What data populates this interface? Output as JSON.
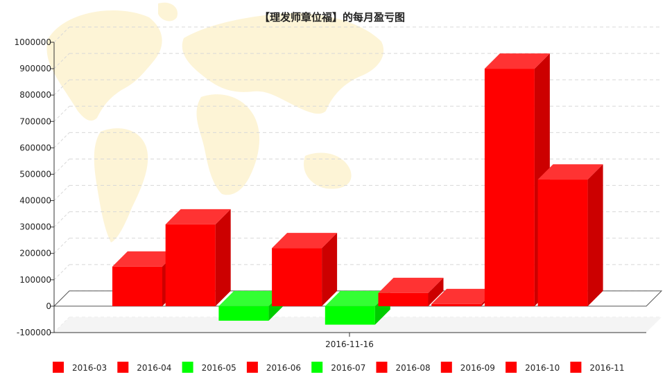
{
  "chart_data": {
    "type": "bar",
    "title": "【理发师章位福】的每月盈亏图",
    "xlabel": "",
    "ylabel": "",
    "categories": [
      "2016-11-16"
    ],
    "ylim": [
      -100000,
      1000000
    ],
    "yticks": [
      "1000000",
      "900000",
      "800000",
      "700000",
      "600000",
      "500000",
      "400000",
      "300000",
      "200000",
      "100000",
      "0",
      "-100000"
    ],
    "grid": true,
    "legend_position": "bottom",
    "series": [
      {
        "name": "2016-03",
        "values": [
          150000
        ],
        "color": "#ff0000"
      },
      {
        "name": "2016-04",
        "values": [
          310000
        ],
        "color": "#ff0000"
      },
      {
        "name": "2016-05",
        "values": [
          -55000
        ],
        "color": "#00ff00"
      },
      {
        "name": "2016-06",
        "values": [
          220000
        ],
        "color": "#ff0000"
      },
      {
        "name": "2016-07",
        "values": [
          -70000
        ],
        "color": "#00ff00"
      },
      {
        "name": "2016-08",
        "values": [
          50000
        ],
        "color": "#ff0000"
      },
      {
        "name": "2016-09",
        "values": [
          8000
        ],
        "color": "#ff0000"
      },
      {
        "name": "2016-10",
        "values": [
          900000
        ],
        "color": "#ff0000"
      },
      {
        "name": "2016-11",
        "values": [
          480000
        ],
        "color": "#ff0000"
      }
    ]
  }
}
